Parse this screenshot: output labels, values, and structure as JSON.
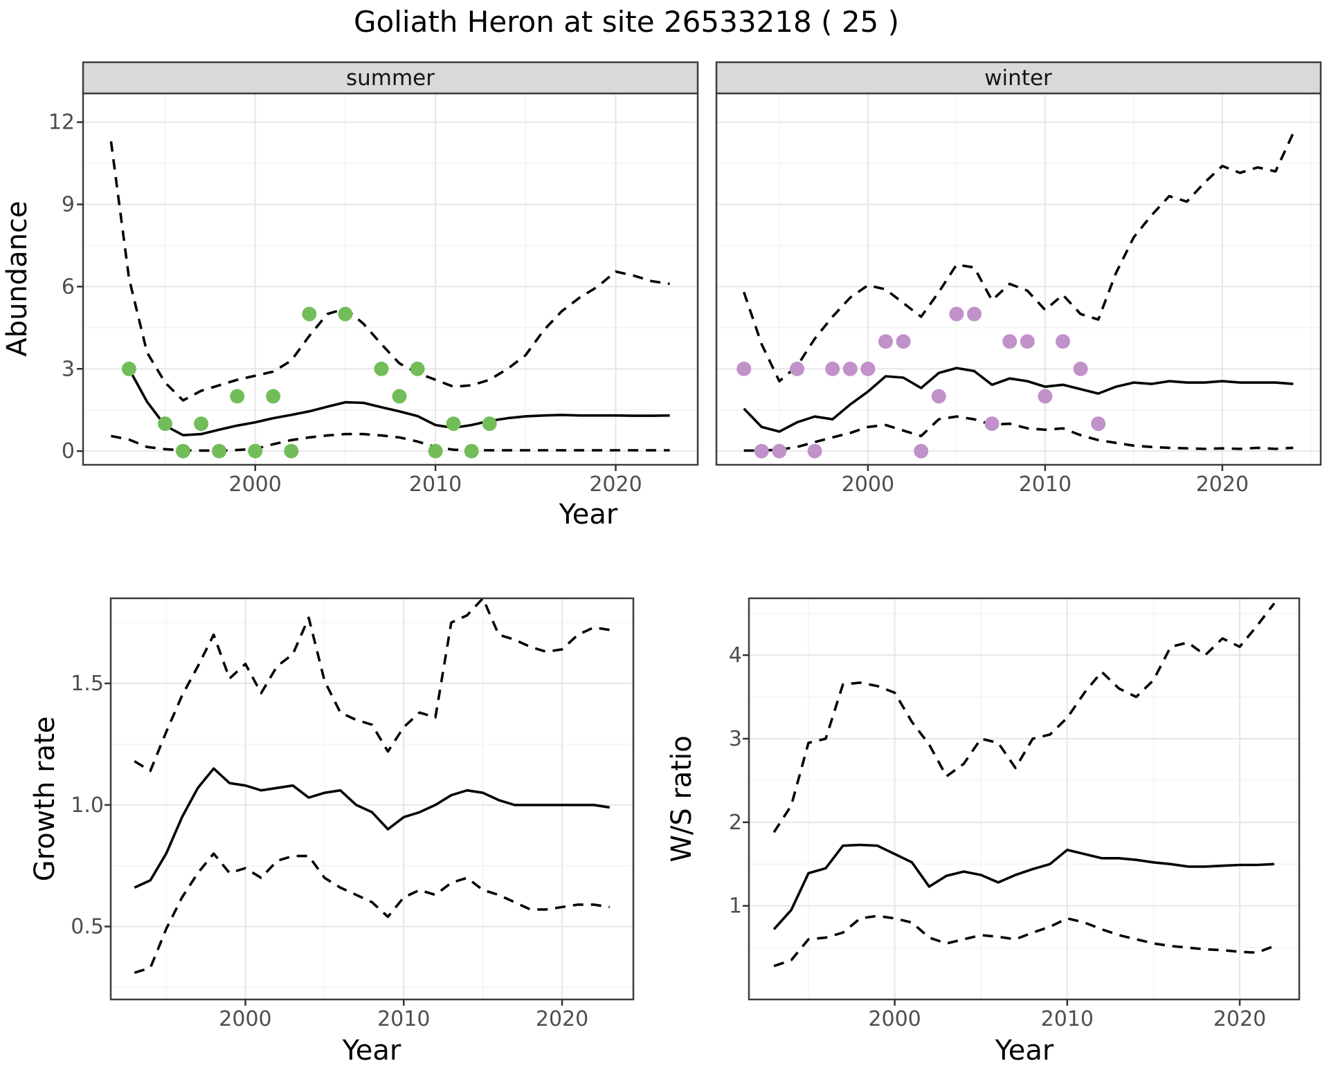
{
  "title": "Goliath Heron at site 26533218 ( 25 )",
  "colors": {
    "summer_point": "#72bd59",
    "winter_point": "#c191c9",
    "line": "#000000",
    "strip_bg": "#d9d9d9",
    "strip_border": "#3c3c3c",
    "panel_border": "#3c3c3c",
    "panel_bg": "#ffffff",
    "grid_major": "#e6e6e6",
    "grid_minor": "#f3f3f3",
    "tick_mark": "#333333",
    "tick_label": "#4d4d4d"
  },
  "chart_data": [
    {
      "id": "abundance-summer",
      "type": "line",
      "facet_label": "summer",
      "xlabel": "Year",
      "ylabel": "Abundance",
      "xlim": [
        1990.45,
        2024.55
      ],
      "ylim": [
        -0.5,
        13.05
      ],
      "x_ticks": [
        2000,
        2010,
        2020
      ],
      "x_tick_labels": [
        "2000",
        "2010",
        "2020"
      ],
      "x_minor": [
        1995,
        2005,
        2015
      ],
      "y_ticks": [
        0,
        3,
        6,
        9,
        12
      ],
      "y_tick_labels": [
        "0",
        "3",
        "6",
        "9",
        "12"
      ],
      "y_minor": [
        1.5,
        4.5,
        7.5,
        10.5
      ],
      "series": [
        {
          "name": "upper_ci",
          "style": "dashed",
          "start_year": 1992,
          "values": [
            11.3,
            6.3,
            3.6,
            2.5,
            1.85,
            2.2,
            2.4,
            2.6,
            2.75,
            2.9,
            3.3,
            4.2,
            5.0,
            5.2,
            4.65,
            3.9,
            3.2,
            2.85,
            2.6,
            2.35,
            2.4,
            2.6,
            3.0,
            3.5,
            4.4,
            5.1,
            5.6,
            6.0,
            6.55,
            6.4,
            6.2,
            6.1
          ]
        },
        {
          "name": "lower_ci",
          "style": "dashed",
          "start_year": 1992,
          "values": [
            0.55,
            0.42,
            0.15,
            0.07,
            0.03,
            0.02,
            0.02,
            0.04,
            0.08,
            0.25,
            0.4,
            0.5,
            0.57,
            0.62,
            0.62,
            0.57,
            0.5,
            0.35,
            0.15,
            0.05,
            0.03,
            0.03,
            0.03,
            0.03,
            0.03,
            0.03,
            0.03,
            0.03,
            0.03,
            0.03,
            0.03,
            0.03
          ]
        },
        {
          "name": "mean",
          "style": "solid",
          "start_year": 1993,
          "values": [
            3.0,
            1.8,
            0.93,
            0.58,
            0.62,
            0.78,
            0.93,
            1.05,
            1.2,
            1.32,
            1.45,
            1.62,
            1.78,
            1.76,
            1.6,
            1.45,
            1.28,
            0.95,
            0.85,
            0.95,
            1.1,
            1.2,
            1.27,
            1.3,
            1.32,
            1.3,
            1.3,
            1.3,
            1.29,
            1.29,
            1.3
          ]
        }
      ],
      "observations": {
        "color_key": "summer_point",
        "points": [
          [
            1993,
            3
          ],
          [
            1995,
            1
          ],
          [
            1996,
            0
          ],
          [
            1997,
            1
          ],
          [
            1998,
            0
          ],
          [
            1999,
            2
          ],
          [
            2000,
            0
          ],
          [
            2001,
            2
          ],
          [
            2002,
            0
          ],
          [
            2003,
            5
          ],
          [
            2005,
            5
          ],
          [
            2007,
            3
          ],
          [
            2008,
            2
          ],
          [
            2009,
            3
          ],
          [
            2010,
            0
          ],
          [
            2011,
            1
          ],
          [
            2012,
            0
          ],
          [
            2013,
            1
          ]
        ]
      }
    },
    {
      "id": "abundance-winter",
      "type": "line",
      "facet_label": "winter",
      "xlabel": "Year",
      "ylabel": "",
      "xlim": [
        1991.45,
        2025.55
      ],
      "ylim": [
        -0.5,
        13.05
      ],
      "x_ticks": [
        2000,
        2010,
        2020
      ],
      "x_tick_labels": [
        "2000",
        "2010",
        "2020"
      ],
      "x_minor": [
        1995,
        2005,
        2015,
        2025
      ],
      "y_ticks": [
        0,
        3,
        6,
        9,
        12
      ],
      "y_tick_labels": [
        "0",
        "3",
        "6",
        "9",
        "12"
      ],
      "y_minor": [
        1.5,
        4.5,
        7.5,
        10.5
      ],
      "series": [
        {
          "name": "upper_ci",
          "style": "dashed",
          "start_year": 1993,
          "values": [
            5.8,
            3.9,
            2.55,
            3.1,
            4.1,
            4.9,
            5.6,
            6.05,
            5.9,
            5.4,
            4.9,
            5.8,
            6.8,
            6.7,
            5.5,
            6.1,
            5.85,
            5.15,
            5.7,
            5.0,
            4.8,
            6.5,
            7.8,
            8.6,
            9.3,
            9.1,
            9.8,
            10.4,
            10.15,
            10.35,
            10.2,
            11.6
          ]
        },
        {
          "name": "lower_ci",
          "style": "dashed",
          "start_year": 1993,
          "values": [
            0.02,
            0.02,
            0.05,
            0.15,
            0.33,
            0.5,
            0.66,
            0.88,
            0.95,
            0.75,
            0.55,
            1.16,
            1.26,
            1.16,
            0.96,
            1.0,
            0.83,
            0.78,
            0.83,
            0.58,
            0.4,
            0.3,
            0.2,
            0.15,
            0.12,
            0.1,
            0.08,
            0.1,
            0.08,
            0.12,
            0.08,
            0.12
          ]
        },
        {
          "name": "mean",
          "style": "solid",
          "start_year": 1993,
          "values": [
            1.55,
            0.88,
            0.71,
            1.05,
            1.26,
            1.16,
            1.7,
            2.17,
            2.73,
            2.68,
            2.3,
            2.85,
            3.03,
            2.92,
            2.42,
            2.65,
            2.55,
            2.35,
            2.42,
            2.26,
            2.1,
            2.35,
            2.5,
            2.45,
            2.55,
            2.5,
            2.5,
            2.55,
            2.5,
            2.5,
            2.5,
            2.45
          ]
        }
      ],
      "observations": {
        "color_key": "winter_point",
        "points": [
          [
            1993,
            3
          ],
          [
            1994,
            0
          ],
          [
            1995,
            0
          ],
          [
            1996,
            3
          ],
          [
            1997,
            0
          ],
          [
            1998,
            3
          ],
          [
            1999,
            3
          ],
          [
            2000,
            3
          ],
          [
            2001,
            4
          ],
          [
            2002,
            4
          ],
          [
            2003,
            0
          ],
          [
            2004,
            2
          ],
          [
            2005,
            5
          ],
          [
            2006,
            5
          ],
          [
            2007,
            1
          ],
          [
            2008,
            4
          ],
          [
            2009,
            4
          ],
          [
            2010,
            2
          ],
          [
            2011,
            4
          ],
          [
            2012,
            3
          ],
          [
            2013,
            1
          ]
        ]
      }
    },
    {
      "id": "growth-rate",
      "type": "line",
      "facet_label": "",
      "xlabel": "Year",
      "ylabel": "Growth rate",
      "xlim": [
        1991.5,
        2024.5
      ],
      "ylim": [
        0.2,
        1.85
      ],
      "x_ticks": [
        2000,
        2010,
        2020
      ],
      "x_tick_labels": [
        "2000",
        "2010",
        "2020"
      ],
      "x_minor": [
        1995,
        2005,
        2015
      ],
      "y_ticks": [
        0.5,
        1.0,
        1.5
      ],
      "y_tick_labels": [
        "0.5",
        "1.0",
        "1.5"
      ],
      "y_minor": [
        0.25,
        0.75,
        1.25,
        1.75
      ],
      "series": [
        {
          "name": "upper_ci",
          "style": "dashed",
          "start_year": 1993,
          "values": [
            1.18,
            1.14,
            1.3,
            1.45,
            1.57,
            1.7,
            1.52,
            1.58,
            1.46,
            1.57,
            1.62,
            1.77,
            1.51,
            1.38,
            1.35,
            1.33,
            1.22,
            1.32,
            1.38,
            1.36,
            1.75,
            1.78,
            1.85,
            1.7,
            1.68,
            1.65,
            1.63,
            1.64,
            1.7,
            1.73,
            1.72
          ]
        },
        {
          "name": "lower_ci",
          "style": "dashed",
          "start_year": 1993,
          "values": [
            0.31,
            0.33,
            0.49,
            0.62,
            0.72,
            0.8,
            0.72,
            0.74,
            0.7,
            0.77,
            0.79,
            0.79,
            0.7,
            0.66,
            0.63,
            0.6,
            0.54,
            0.62,
            0.65,
            0.63,
            0.68,
            0.7,
            0.65,
            0.63,
            0.6,
            0.57,
            0.57,
            0.58,
            0.59,
            0.59,
            0.58
          ]
        },
        {
          "name": "mean",
          "style": "solid",
          "start_year": 1993,
          "values": [
            0.66,
            0.69,
            0.8,
            0.95,
            1.07,
            1.15,
            1.09,
            1.08,
            1.06,
            1.07,
            1.08,
            1.03,
            1.05,
            1.06,
            1.0,
            0.97,
            0.9,
            0.95,
            0.97,
            1.0,
            1.04,
            1.06,
            1.05,
            1.02,
            1.0,
            1.0,
            1.0,
            1.0,
            1.0,
            1.0,
            0.99
          ]
        }
      ],
      "observations": {
        "color_key": "",
        "points": []
      }
    },
    {
      "id": "ws-ratio",
      "type": "line",
      "facet_label": "",
      "xlabel": "Year",
      "ylabel": "W/S ratio",
      "xlim": [
        1991.55,
        2023.45
      ],
      "ylim": [
        -0.12,
        4.68
      ],
      "x_ticks": [
        2000,
        2010,
        2020
      ],
      "x_tick_labels": [
        "2000",
        "2010",
        "2020"
      ],
      "x_minor": [
        1995,
        2005,
        2015
      ],
      "y_ticks": [
        1,
        2,
        3,
        4
      ],
      "y_tick_labels": [
        "1",
        "2",
        "3",
        "4"
      ],
      "y_minor": [
        0.5,
        1.5,
        2.5,
        3.5,
        4.5
      ],
      "series": [
        {
          "name": "upper_ci",
          "style": "dashed",
          "start_year": 1993,
          "values": [
            1.88,
            2.2,
            2.95,
            3.0,
            3.65,
            3.67,
            3.63,
            3.55,
            3.2,
            2.93,
            2.55,
            2.7,
            3.0,
            2.95,
            2.65,
            3.0,
            3.05,
            3.25,
            3.55,
            3.8,
            3.6,
            3.5,
            3.7,
            4.1,
            4.15,
            4.0,
            4.2,
            4.1,
            4.35,
            4.62
          ]
        },
        {
          "name": "lower_ci",
          "style": "dashed",
          "start_year": 1993,
          "values": [
            0.28,
            0.35,
            0.6,
            0.62,
            0.68,
            0.85,
            0.88,
            0.85,
            0.8,
            0.62,
            0.55,
            0.6,
            0.65,
            0.63,
            0.6,
            0.68,
            0.75,
            0.85,
            0.8,
            0.72,
            0.65,
            0.6,
            0.55,
            0.52,
            0.5,
            0.48,
            0.47,
            0.45,
            0.44,
            0.52
          ]
        },
        {
          "name": "mean",
          "style": "solid",
          "start_year": 1993,
          "values": [
            0.72,
            0.95,
            1.39,
            1.45,
            1.72,
            1.73,
            1.72,
            1.62,
            1.52,
            1.23,
            1.36,
            1.41,
            1.37,
            1.28,
            1.37,
            1.44,
            1.5,
            1.67,
            1.62,
            1.57,
            1.57,
            1.55,
            1.52,
            1.5,
            1.47,
            1.47,
            1.48,
            1.49,
            1.49,
            1.5
          ]
        }
      ],
      "observations": {
        "color_key": "",
        "points": []
      }
    }
  ]
}
